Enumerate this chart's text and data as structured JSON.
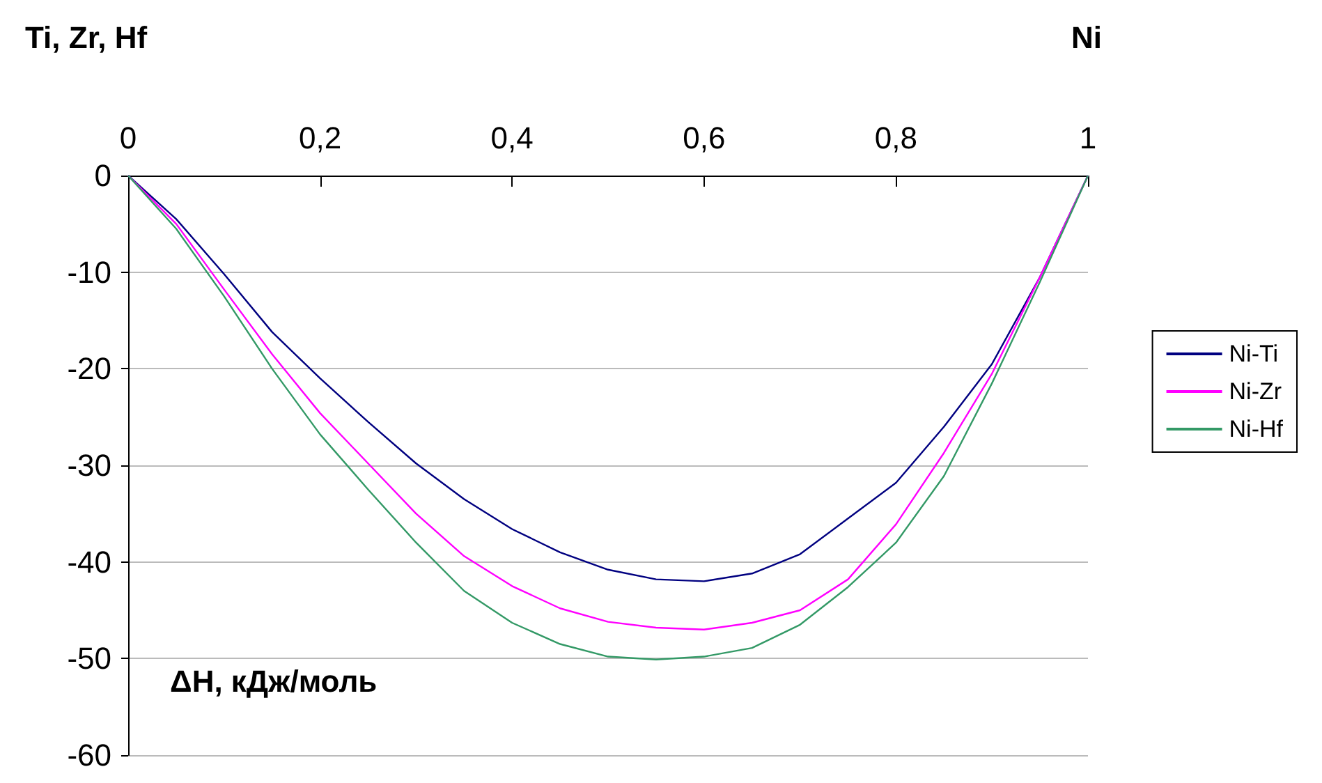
{
  "chart_data": {
    "type": "line",
    "ylabel": "ΔH, кДж/моль",
    "annotations": [
      "Ti, Zr, Hf",
      "Ni"
    ],
    "x": [
      0,
      0.05,
      0.1,
      0.15,
      0.2,
      0.25,
      0.3,
      0.35,
      0.4,
      0.45,
      0.5,
      0.55,
      0.6,
      0.65,
      0.7,
      0.75,
      0.8,
      0.85,
      0.9,
      0.95,
      1
    ],
    "series": [
      {
        "name": "Ni-Ti",
        "color": "#000080",
        "values": [
          0,
          -4.5,
          -10.2,
          -16.2,
          -21,
          -25.5,
          -29.8,
          -33.5,
          -36.6,
          -39,
          -40.8,
          -41.8,
          -42,
          -41.2,
          -39.2,
          -35.5,
          -31.8,
          -26,
          -19.5,
          -10.5,
          0
        ]
      },
      {
        "name": "Ni-Zr",
        "color": "#ff00ff",
        "values": [
          0,
          -5,
          -11.8,
          -18.5,
          -24.6,
          -29.8,
          -35,
          -39.4,
          -42.5,
          -44.8,
          -46.2,
          -46.8,
          -47,
          -46.3,
          -45,
          -41.8,
          -36.1,
          -28.7,
          -20.5,
          -10.5,
          0
        ]
      },
      {
        "name": "Ni-Hf",
        "color": "#339966",
        "values": [
          0,
          -5.5,
          -12.5,
          -20,
          -26.8,
          -32.5,
          -38,
          -43,
          -46.3,
          -48.5,
          -49.8,
          -50.1,
          -49.8,
          -48.9,
          -46.5,
          -42.6,
          -38,
          -31.1,
          -21.5,
          -11,
          0
        ]
      }
    ],
    "xlim": [
      0,
      1
    ],
    "xticks": [
      0,
      {
        "value": 0.2,
        "label": "0,2"
      },
      {
        "value": 0.4,
        "label": "0,4"
      },
      {
        "value": 0.6,
        "label": "0,6"
      },
      {
        "value": 0.8,
        "label": "0,8"
      },
      1
    ],
    "ylim": [
      -60,
      0
    ],
    "yticks": [
      -60,
      -50,
      -40,
      -30,
      -20,
      -10,
      0
    ],
    "grid": "y",
    "legend": "right",
    "marker": "none",
    "line_style": "solid"
  }
}
